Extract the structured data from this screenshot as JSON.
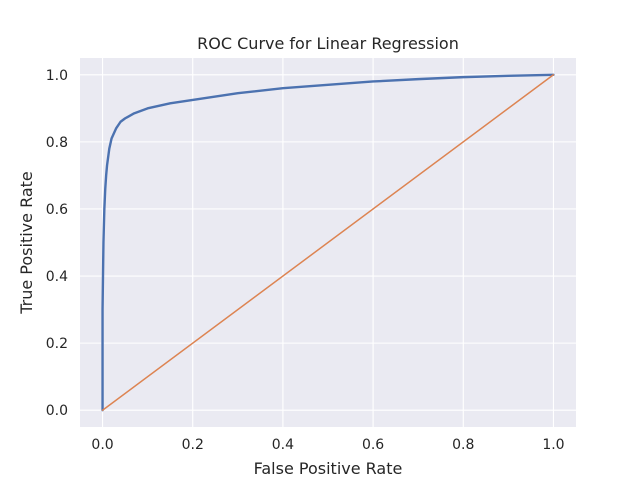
{
  "chart_data": {
    "type": "line",
    "title": "ROC Curve for Linear Regression",
    "xlabel": "False Positive Rate",
    "ylabel": "True Positive Rate",
    "xlim": [
      -0.05,
      1.05
    ],
    "ylim": [
      -0.05,
      1.05
    ],
    "xticks": [
      0.0,
      0.2,
      0.4,
      0.6,
      0.8,
      1.0
    ],
    "xtick_labels": [
      "0.0",
      "0.2",
      "0.4",
      "0.6",
      "0.8",
      "1.0"
    ],
    "yticks": [
      0.0,
      0.2,
      0.4,
      0.6,
      0.8,
      1.0
    ],
    "ytick_labels": [
      "0.0",
      "0.2",
      "0.4",
      "0.6",
      "0.8",
      "1.0"
    ],
    "grid": true,
    "background": "#eaeaf2",
    "series": [
      {
        "color": "#4c72b0",
        "x": [
          0.0,
          0.0,
          0.002,
          0.004,
          0.006,
          0.008,
          0.01,
          0.015,
          0.02,
          0.03,
          0.04,
          0.05,
          0.07,
          0.1,
          0.15,
          0.2,
          0.3,
          0.4,
          0.5,
          0.6,
          0.7,
          0.8,
          0.9,
          1.0
        ],
        "y": [
          0.0,
          0.3,
          0.5,
          0.6,
          0.66,
          0.7,
          0.73,
          0.78,
          0.81,
          0.84,
          0.86,
          0.87,
          0.885,
          0.9,
          0.915,
          0.925,
          0.945,
          0.96,
          0.97,
          0.98,
          0.987,
          0.993,
          0.997,
          1.0
        ]
      },
      {
        "color": "#dd8452",
        "x": [
          0.0,
          1.0
        ],
        "y": [
          0.0,
          1.0
        ]
      }
    ]
  }
}
